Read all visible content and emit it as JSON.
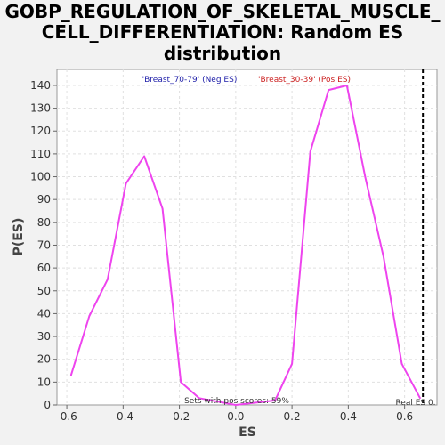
{
  "chart_data": {
    "type": "line",
    "title_lines": [
      "GOBP_REGULATION_OF_SKELETAL_MUSCLE_",
      "CELL_DIFFERENTIATION: Random ES",
      "distribution"
    ],
    "xlabel": "ES",
    "ylabel": "P(ES)",
    "xlim": [
      -0.635,
      0.715
    ],
    "ylim": [
      0,
      147
    ],
    "xticks": [
      -0.6,
      -0.4,
      -0.2,
      0.0,
      0.2,
      0.4,
      0.6
    ],
    "xtick_labels": [
      "-0.6",
      "-0.4",
      "-0.2",
      "0.0",
      "0.2",
      "0.4",
      "0.6"
    ],
    "yticks": [
      0,
      10,
      20,
      30,
      40,
      50,
      60,
      70,
      80,
      90,
      100,
      110,
      120,
      130,
      140
    ],
    "grid": true,
    "series": [
      {
        "color": "#ee44ee",
        "x": [
          -0.585,
          -0.52,
          -0.455,
          -0.39,
          -0.325,
          -0.26,
          -0.195,
          -0.13,
          0.0,
          0.14,
          0.2,
          0.265,
          0.33,
          0.395,
          0.46,
          0.525,
          0.59,
          0.655
        ],
        "y": [
          13,
          39,
          55,
          97,
          109,
          86,
          10,
          3,
          0,
          2,
          18,
          111,
          138,
          140,
          100,
          65,
          18,
          3
        ]
      }
    ],
    "legend": {
      "neg_label": "'Breast_70-79' (Neg ES)",
      "pos_label": "'Breast_30-39' (Pos ES)",
      "neg_color": "#2222aa",
      "pos_color": "#cc2222"
    },
    "real_es": {
      "x": 0.665,
      "label": "Real ES 0."
    },
    "annotation": "Sets with pos scores: 59%"
  }
}
